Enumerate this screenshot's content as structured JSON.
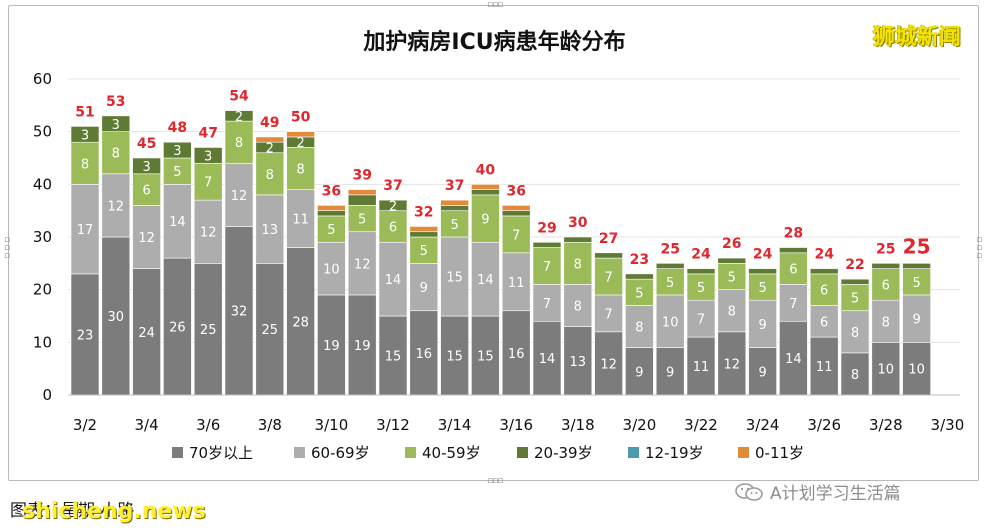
{
  "title": "加护病房ICU病患年龄分布",
  "brand": "狮城新闻",
  "credit": "图表：星期 小路",
  "watermark": "shicheng.news",
  "wechat_account": "A计划学习生活篇",
  "colors": {
    "70+": "#7c7c7c",
    "60-69": "#adadad",
    "40-59": "#9bbb59",
    "20-39": "#5f7a34",
    "12-19": "#4a9bb0",
    "0-11": "#e08a3a",
    "total_label": "#e0262e",
    "segment_label": "#ffffff"
  },
  "chart_data": {
    "type": "bar",
    "stacked": true,
    "categories": [
      "3/2",
      "3/3",
      "3/4",
      "3/5",
      "3/6",
      "3/7",
      "3/8",
      "3/9",
      "3/10",
      "3/11",
      "3/12",
      "3/13",
      "3/14",
      "3/15",
      "3/16",
      "3/17",
      "3/18",
      "3/19",
      "3/20",
      "3/21",
      "3/22",
      "3/23",
      "3/24",
      "3/25",
      "3/26",
      "3/27",
      "3/28",
      "3/29"
    ],
    "x_tick_labels": [
      "3/2",
      "3/4",
      "3/6",
      "3/8",
      "3/10",
      "3/12",
      "3/14",
      "3/16",
      "3/18",
      "3/20",
      "3/22",
      "3/24",
      "3/26",
      "3/28",
      "3/30"
    ],
    "y_ticks": [
      0,
      10,
      20,
      30,
      40,
      50,
      60
    ],
    "ylim": [
      0,
      60
    ],
    "series": [
      {
        "name": "70岁以上",
        "key": "70+",
        "values": [
          23,
          30,
          24,
          26,
          25,
          32,
          25,
          28,
          19,
          19,
          15,
          16,
          15,
          15,
          16,
          14,
          13,
          12,
          9,
          9,
          11,
          12,
          9,
          14,
          11,
          8,
          10,
          10
        ]
      },
      {
        "name": "60-69岁",
        "key": "60-69",
        "values": [
          17,
          12,
          12,
          14,
          12,
          12,
          13,
          11,
          10,
          12,
          14,
          9,
          15,
          14,
          11,
          7,
          8,
          7,
          8,
          10,
          7,
          8,
          9,
          7,
          6,
          8,
          8,
          9
        ]
      },
      {
        "name": "40-59岁",
        "key": "40-59",
        "values": [
          8,
          8,
          6,
          5,
          7,
          8,
          8,
          8,
          5,
          5,
          6,
          5,
          5,
          9,
          7,
          7,
          8,
          7,
          5,
          5,
          5,
          5,
          5,
          6,
          6,
          5,
          6,
          5
        ]
      },
      {
        "name": "20-39岁",
        "key": "20-39",
        "values": [
          3,
          3,
          3,
          3,
          3,
          2,
          2,
          2,
          1,
          2,
          2,
          1,
          1,
          1,
          1,
          1,
          1,
          1,
          1,
          1,
          1,
          1,
          1,
          1,
          1,
          1,
          1,
          1
        ]
      },
      {
        "name": "12-19岁",
        "key": "12-19",
        "values": [
          0,
          0,
          0,
          0,
          0,
          0,
          0,
          0,
          0,
          0,
          0,
          0,
          0,
          0,
          0,
          0,
          0,
          0,
          0,
          0,
          0,
          0,
          0,
          0,
          0,
          0,
          0,
          0
        ]
      },
      {
        "name": "0-11岁",
        "key": "0-11",
        "values": [
          0,
          0,
          0,
          0,
          0,
          0,
          1,
          1,
          1,
          1,
          0,
          1,
          1,
          1,
          1,
          0,
          0,
          0,
          0,
          0,
          0,
          0,
          0,
          0,
          0,
          0,
          0,
          0
        ]
      }
    ],
    "totals": [
      51,
      53,
      45,
      48,
      47,
      54,
      49,
      50,
      36,
      39,
      37,
      32,
      37,
      40,
      36,
      29,
      30,
      27,
      23,
      25,
      24,
      26,
      24,
      28,
      24,
      22,
      25,
      25
    ],
    "segment_labels": {
      "70+": [
        "23",
        "30",
        "24",
        "26",
        "25",
        "32",
        "25",
        "28",
        "19",
        "19",
        "15",
        "16",
        "15",
        "15",
        "16",
        "14",
        "13",
        "12",
        "9",
        "9",
        "11",
        "12",
        "9",
        "14",
        "11",
        "8",
        "10",
        "10"
      ],
      "60-69": [
        "17",
        "12",
        "12",
        "14",
        "12",
        "12",
        "13",
        "11",
        "10",
        "12",
        "14",
        "9",
        "15",
        "14",
        "11",
        "7",
        "8",
        "7",
        "8",
        "10",
        "7",
        "8",
        "9",
        "7",
        "6",
        "8",
        "8",
        "9"
      ],
      "40-59": [
        "8",
        "8",
        "6",
        "5",
        "7",
        "8",
        "8",
        "8",
        "5",
        "5",
        "6",
        "5",
        "5",
        "9",
        "7",
        "7",
        "8",
        "7",
        "5",
        "5",
        "5",
        "5",
        "5",
        "6",
        "6",
        "5",
        "6",
        "5"
      ],
      "20-39": [
        "3",
        "3",
        "3",
        "3",
        "3",
        "2",
        "2",
        "2",
        "",
        "",
        "2",
        "",
        "",
        "",
        "",
        "",
        "",
        "",
        "",
        "",
        "",
        "",
        "",
        "",
        "",
        "",
        "",
        ""
      ]
    },
    "highlight_last_total": true,
    "grid": true,
    "legend_position": "bottom"
  }
}
